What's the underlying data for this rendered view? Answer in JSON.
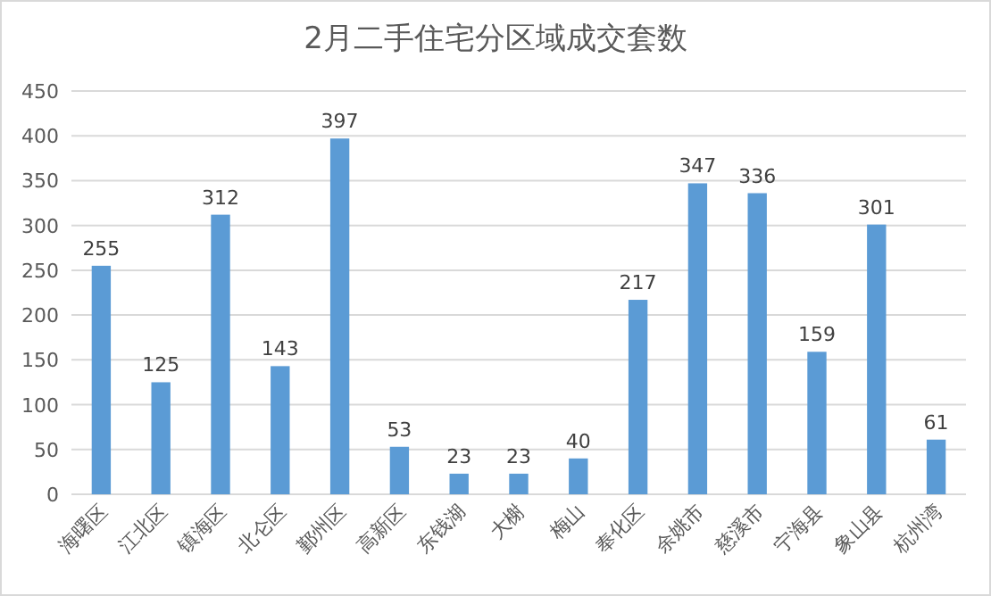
{
  "chart_data": {
    "type": "bar",
    "title": "2月二手住宅分区域成交套数",
    "categories": [
      "海曙区",
      "江北区",
      "镇海区",
      "北仑区",
      "鄞州区",
      "高新区",
      "东钱湖",
      "大榭",
      "梅山",
      "奉化区",
      "余姚市",
      "慈溪市",
      "宁海县",
      "象山县",
      "杭州湾"
    ],
    "values": [
      255,
      125,
      312,
      143,
      397,
      53,
      23,
      23,
      40,
      217,
      347,
      336,
      159,
      301,
      61
    ],
    "color": "#5b9bd5",
    "ylim": [
      0,
      450
    ],
    "yticks": [
      0,
      50,
      100,
      150,
      200,
      250,
      300,
      350,
      400,
      450
    ],
    "grid": "y",
    "data_labels": true
  }
}
